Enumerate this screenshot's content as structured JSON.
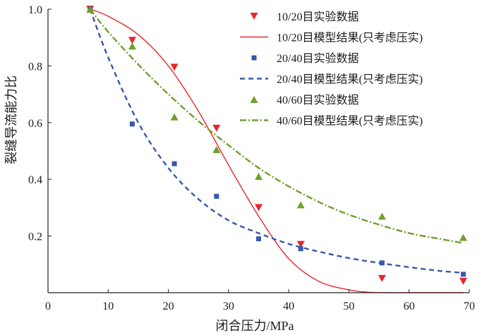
{
  "chart_data": {
    "type": "scatter",
    "xlabel": "闭合压力/MPa",
    "ylabel": "裂缝导流能力比",
    "xlim": [
      0,
      70
    ],
    "ylim": [
      0,
      1.0
    ],
    "x_ticks": [
      0,
      10,
      20,
      30,
      40,
      50,
      60,
      70
    ],
    "x_tick_labels": [
      "0",
      "10",
      "20",
      "30",
      "40",
      "50",
      "60",
      "70"
    ],
    "y_ticks": [
      0.2,
      0.4,
      0.6,
      0.8,
      1.0
    ],
    "y_tick_labels": [
      "0.2",
      "0.4",
      "0.6",
      "0.8",
      "1.0"
    ],
    "grid": false,
    "legend_position": "top-right",
    "series": [
      {
        "name": "10/20目实验数据",
        "kind": "scatter",
        "marker": "triangle-down",
        "color": "#e8262d",
        "x": [
          7,
          14,
          21,
          28,
          35,
          42,
          55.5,
          69
        ],
        "y": [
          1.0,
          0.89,
          0.795,
          0.58,
          0.3,
          0.17,
          0.05,
          0.04
        ]
      },
      {
        "name": "10/20目模型结果(只考虑压实)",
        "kind": "line",
        "dash": "solid",
        "color": "#e8262d",
        "x": [
          7,
          10,
          15,
          20,
          25,
          30,
          35,
          40,
          45,
          50,
          53,
          56,
          60,
          69
        ],
        "y": [
          1.0,
          0.975,
          0.91,
          0.8,
          0.64,
          0.45,
          0.27,
          0.12,
          0.04,
          0.01,
          0.002,
          0,
          0,
          0
        ]
      },
      {
        "name": "20/40目实验数据",
        "kind": "scatter",
        "marker": "square",
        "color": "#3558a8",
        "x": [
          7,
          14,
          21,
          28,
          35,
          42,
          55.5,
          69
        ],
        "y": [
          1.0,
          0.595,
          0.455,
          0.34,
          0.19,
          0.155,
          0.105,
          0.065
        ]
      },
      {
        "name": "20/40目模型结果(只考虑压实)",
        "kind": "line",
        "dash": "dashed",
        "color": "#3558a8",
        "x": [
          7,
          10,
          15,
          20,
          25,
          30,
          35,
          40,
          45,
          50,
          55,
          60,
          65,
          69
        ],
        "y": [
          1.0,
          0.83,
          0.6,
          0.44,
          0.33,
          0.255,
          0.21,
          0.172,
          0.145,
          0.122,
          0.105,
          0.09,
          0.077,
          0.07
        ]
      },
      {
        "name": "40/60目实验数据",
        "kind": "scatter",
        "marker": "triangle-up",
        "color": "#6fa030",
        "x": [
          7,
          14,
          21,
          28,
          35,
          42,
          55.5,
          69
        ],
        "y": [
          1.0,
          0.87,
          0.62,
          0.505,
          0.41,
          0.31,
          0.27,
          0.195
        ]
      },
      {
        "name": "40/60目模型结果(只考虑压实)",
        "kind": "line",
        "dash": "dash-dot",
        "color": "#6fa030",
        "x": [
          7,
          10,
          15,
          20,
          25,
          30,
          35,
          40,
          45,
          50,
          55,
          60,
          65,
          69
        ],
        "y": [
          1.0,
          0.92,
          0.805,
          0.7,
          0.605,
          0.52,
          0.44,
          0.375,
          0.32,
          0.275,
          0.24,
          0.21,
          0.19,
          0.175
        ]
      }
    ]
  }
}
